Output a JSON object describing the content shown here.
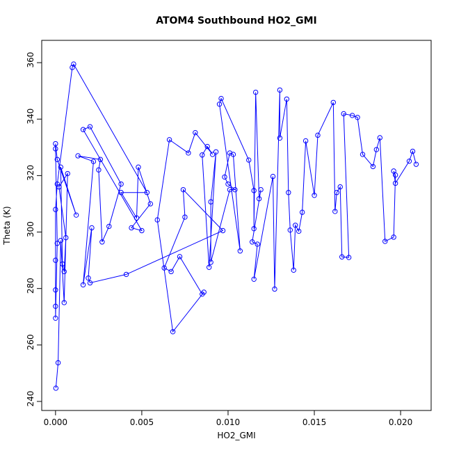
{
  "chart_data": {
    "type": "line",
    "marker": "circle",
    "title": "ATOM4 Southbound HO2_GMI",
    "x_label": "HO2_GMI",
    "y_label": "Theta (K)",
    "xlim": [
      -0.0008,
      0.02177
    ],
    "ylim": [
      236.8,
      367.9
    ],
    "xticks": [
      {
        "value": 0,
        "label": "0.000"
      },
      {
        "value": 0.005,
        "label": "0.005"
      },
      {
        "value": 0.01,
        "label": "0.010"
      },
      {
        "value": 0.015,
        "label": "0.015"
      },
      {
        "value": 0.02,
        "label": "0.020"
      }
    ],
    "yticks": [
      240,
      260,
      280,
      300,
      320,
      340,
      360
    ],
    "series": [
      {
        "name": "HO2_GMI",
        "color": "#0000ff",
        "x": [
          2e-05,
          0.00015,
          0.0003,
          0.0005,
          0.0007,
          0.0002,
          0.0006,
          0.0005,
          0.0004,
          0.0003,
          0.0012,
          0.0001,
          0.0,
          0.0,
          0.0001,
          0.0,
          0.0,
          0.0,
          0.0,
          0.0,
          0.0001,
          0.00097,
          0.00105,
          0.0053,
          0.0038,
          0.0047,
          0.0048,
          0.0055,
          0.0044,
          0.005,
          0.0016,
          0.002,
          0.0038,
          0.0031,
          0.0027,
          0.0025,
          0.0026,
          0.0013,
          0.0022,
          0.0016,
          0.0021,
          0.0019,
          0.002,
          0.0041,
          0.0097,
          0.0074,
          0.0075,
          0.0063,
          0.0067,
          0.0072,
          0.0085,
          0.0086,
          0.0068,
          0.0059,
          0.0066,
          0.0077,
          0.0081,
          0.0091,
          0.0088,
          0.0085,
          0.0089,
          0.0093,
          0.009,
          0.009,
          0.0101,
          0.0104,
          0.01,
          0.0098,
          0.0101,
          0.0103,
          0.0107,
          0.0095,
          0.0096,
          0.0112,
          0.0115,
          0.0115,
          0.0116,
          0.0118,
          0.0119,
          0.0114,
          0.0117,
          0.0115,
          0.0126,
          0.0127,
          0.013,
          0.013,
          0.0134,
          0.0135,
          0.0136,
          0.0138,
          0.0139,
          0.0141,
          0.0143,
          0.0145,
          0.015,
          0.0152,
          0.0161,
          0.0162,
          0.0163,
          0.0165,
          0.0166,
          0.017,
          0.0167,
          0.0172,
          0.0175,
          0.0178,
          0.0184,
          0.0186,
          0.0188,
          0.0191,
          0.0196,
          0.0197,
          0.0196,
          0.0197,
          0.0205,
          0.0207,
          0.0209
        ],
        "values": [
          244.7,
          253.7,
          297,
          275,
          320.7,
          316,
          298,
          286,
          288.7,
          323,
          306,
          325.7,
          331.3,
          329.5,
          296,
          269.5,
          273.7,
          279.5,
          290,
          308,
          317,
          358.3,
          359.5,
          314,
          314,
          305,
          323,
          310,
          301.5,
          300.5,
          336.3,
          337.3,
          317,
          302,
          296.5,
          322,
          325.7,
          327,
          325,
          281.3,
          301.5,
          283.7,
          282,
          285,
          300.5,
          315,
          305.3,
          287.3,
          286,
          291.3,
          278,
          278.7,
          264.7,
          304.3,
          332.7,
          328,
          335.2,
          327.5,
          330.3,
          327.3,
          287.5,
          328.4,
          310.7,
          289.3,
          315,
          315,
          317,
          319.5,
          328,
          327.5,
          293.3,
          345.3,
          347.3,
          325.5,
          314.7,
          301.2,
          349.5,
          311.8,
          315,
          296.5,
          295.7,
          283.3,
          319.7,
          279.8,
          350.3,
          333.3,
          347.1,
          314,
          300.7,
          286.5,
          302.4,
          300.3,
          307,
          332.3,
          313,
          334.3,
          345.9,
          307.3,
          314,
          316,
          291.2,
          291,
          341.9,
          341.3,
          340.6,
          327.5,
          323.2,
          329.2,
          333.4,
          296.7,
          298.2,
          320.2,
          321.6,
          317.3,
          325.1,
          328.6,
          324
        ]
      }
    ]
  }
}
